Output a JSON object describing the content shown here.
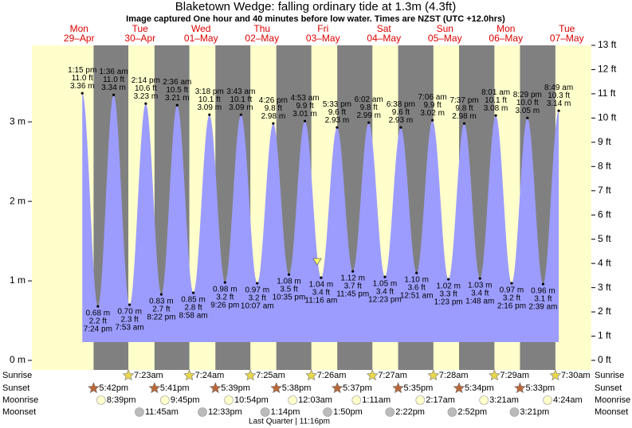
{
  "chart_data": {
    "type": "tide",
    "title": "Blaketown Wedge: falling  ordinary tide at 1.3m (4.3ft)",
    "subtitle": "Image captured One hour and 40 minutes before low water. Times are NZST (UTC +12.0hrs)",
    "ylim": [
      0,
      3.9624
    ],
    "yticks": [
      {
        "value": 0,
        "label": "0 m"
      },
      {
        "value": 1,
        "label": "1 m"
      },
      {
        "value": 2,
        "label": "2 m"
      },
      {
        "value": 3,
        "label": "3 m"
      }
    ],
    "y2lim": [
      0,
      13
    ],
    "y2ticks": [
      {
        "value": 0,
        "label": "0 ft"
      },
      {
        "value": 1,
        "label": "1 ft"
      },
      {
        "value": 2,
        "label": "2 ft"
      },
      {
        "value": 3,
        "label": "3 ft"
      },
      {
        "value": 4,
        "label": "4 ft"
      },
      {
        "value": 5,
        "label": "5 ft"
      },
      {
        "value": 6,
        "label": "6 ft"
      },
      {
        "value": 7,
        "label": "7 ft"
      },
      {
        "value": 8,
        "label": "8 ft"
      },
      {
        "value": 9,
        "label": "9 ft"
      },
      {
        "value": 10,
        "label": "10 ft"
      },
      {
        "value": 11,
        "label": "11 ft"
      },
      {
        "value": 12,
        "label": "12 ft"
      },
      {
        "value": 13,
        "label": "13 ft"
      }
    ],
    "row_labels": {
      "sunrise": "Sunrise",
      "sunset": "Sunset",
      "moonrise": "Moonrise",
      "moonset": "Moonset"
    },
    "moon_phase": "Last Quarter | 11:16pm",
    "colors": {
      "day": "#ffffcc",
      "night": "#808080",
      "tide": "#9c9cff",
      "day_label": "#dd0000",
      "sunrise": "#e8d84a",
      "sunset": "#b8683a",
      "moonrise": "#ffffcc",
      "moonset": "#bbbbbb"
    },
    "days": [
      {
        "dow": "Mon",
        "date": "29–Apr",
        "sunset": "5:42pm",
        "moonrise": "8:39pm",
        "tides": [
          {
            "time": "1:15 pm",
            "ft_label": "11.0 ft",
            "m": 3.36,
            "m_label": "3.36 m"
          },
          {
            "time": "7:24 pm",
            "ft_label": "2.2 ft",
            "m": 0.68,
            "m_label": "0.68 m"
          }
        ]
      },
      {
        "dow": "Tue",
        "date": "30–Apr",
        "sunrise": "7:23am",
        "sunset": "5:41pm",
        "moonrise": "9:45pm",
        "moonset": "11:45am",
        "tides": [
          {
            "time": "1:36 am",
            "ft_label": "11.0 ft",
            "m": 3.34,
            "m_label": "3.34 m"
          },
          {
            "time": "7:53 am",
            "ft_label": "2.3 ft",
            "m": 0.7,
            "m_label": "0.70 m"
          },
          {
            "time": "2:14 pm",
            "ft_label": "10.6 ft",
            "m": 3.23,
            "m_label": "3.23 m"
          },
          {
            "time": "8:22 pm",
            "ft_label": "2.7 ft",
            "m": 0.83,
            "m_label": "0.83 m"
          }
        ]
      },
      {
        "dow": "Wed",
        "date": "01–May",
        "sunrise": "7:24am",
        "sunset": "5:39pm",
        "moonrise": "10:54pm",
        "moonset": "12:33pm",
        "tides": [
          {
            "time": "2:36 am",
            "ft_label": "10.5 ft",
            "m": 3.21,
            "m_label": "3.21 m"
          },
          {
            "time": "8:58 am",
            "ft_label": "2.8 ft",
            "m": 0.85,
            "m_label": "0.85 m"
          },
          {
            "time": "3:18 pm",
            "ft_label": "10.1 ft",
            "m": 3.09,
            "m_label": "3.09 m"
          },
          {
            "time": "9:26 pm",
            "ft_label": "3.2 ft",
            "m": 0.98,
            "m_label": "0.98 m"
          }
        ]
      },
      {
        "dow": "Thu",
        "date": "02–May",
        "sunrise": "7:25am",
        "sunset": "5:38pm",
        "moonset": "1:14pm",
        "tides": [
          {
            "time": "3:43 am",
            "ft_label": "10.1 ft",
            "m": 3.09,
            "m_label": "3.09 m"
          },
          {
            "time": "10:07 am",
            "ft_label": "3.2 ft",
            "m": 0.97,
            "m_label": "0.97 m"
          },
          {
            "time": "4:26 pm",
            "ft_label": "9.8 ft",
            "m": 2.98,
            "m_label": "2.98 m"
          },
          {
            "time": "10:35 pm",
            "ft_label": "3.5 ft",
            "m": 1.08,
            "m_label": "1.08 m"
          }
        ]
      },
      {
        "dow": "Fri",
        "date": "03–May",
        "sunrise": "7:26am",
        "sunset": "5:37pm",
        "moonrise": "12:03am",
        "moonset": "1:50pm",
        "tides": [
          {
            "time": "4:53 am",
            "ft_label": "9.9 ft",
            "m": 3.01,
            "m_label": "3.01 m"
          },
          {
            "time": "11:16 am",
            "ft_label": "3.4 ft",
            "m": 1.04,
            "m_label": "1.04 m"
          },
          {
            "time": "5:33 pm",
            "ft_label": "9.6 ft",
            "m": 2.93,
            "m_label": "2.93 m"
          },
          {
            "time": "11:45 pm",
            "ft_label": "3.7 ft",
            "m": 1.12,
            "m_label": "1.12 m"
          }
        ]
      },
      {
        "dow": "Sat",
        "date": "04–May",
        "sunrise": "7:27am",
        "sunset": "5:35pm",
        "moonrise": "1:11am",
        "moonset": "2:22pm",
        "tides": [
          {
            "time": "6:02 am",
            "ft_label": "9.8 ft",
            "m": 2.99,
            "m_label": "2.99 m"
          },
          {
            "time": "12:23 pm",
            "ft_label": "3.4 ft",
            "m": 1.05,
            "m_label": "1.05 m"
          },
          {
            "time": "6:38 pm",
            "ft_label": "9.6 ft",
            "m": 2.93,
            "m_label": "2.93 m"
          }
        ]
      },
      {
        "dow": "Sun",
        "date": "05–May",
        "sunrise": "7:28am",
        "sunset": "5:34pm",
        "moonrise": "2:17am",
        "moonset": "2:52pm",
        "tides": [
          {
            "time": "12:51 am",
            "ft_label": "3.6 ft",
            "m": 1.1,
            "m_label": "1.10 m"
          },
          {
            "time": "7:06 am",
            "ft_label": "9.9 ft",
            "m": 3.02,
            "m_label": "3.02 m"
          },
          {
            "time": "1:23 pm",
            "ft_label": "3.3 ft",
            "m": 1.02,
            "m_label": "1.02 m"
          },
          {
            "time": "7:37 pm",
            "ft_label": "9.8 ft",
            "m": 2.98,
            "m_label": "2.98 m"
          }
        ]
      },
      {
        "dow": "Mon",
        "date": "06–May",
        "sunrise": "7:29am",
        "sunset": "5:33pm",
        "moonrise": "3:21am",
        "moonset": "3:21pm",
        "tides": [
          {
            "time": "1:48 am",
            "ft_label": "3.4 ft",
            "m": 1.03,
            "m_label": "1.03 m"
          },
          {
            "time": "8:01 am",
            "ft_label": "10.1 ft",
            "m": 3.08,
            "m_label": "3.08 m"
          },
          {
            "time": "2:16 pm",
            "ft_label": "3.2 ft",
            "m": 0.97,
            "m_label": "0.97 m"
          },
          {
            "time": "8:29 pm",
            "ft_label": "10.0 ft",
            "m": 3.05,
            "m_label": "3.05 m"
          }
        ]
      },
      {
        "dow": "Tue",
        "date": "07–May",
        "sunrise": "7:30am",
        "moonrise": "4:24am",
        "tides": [
          {
            "time": "2:39 am",
            "ft_label": "3.1 ft",
            "m": 0.96,
            "m_label": "0.96 m"
          },
          {
            "time": "8:49 am",
            "ft_label": "10.3 ft",
            "m": 3.14,
            "m_label": "3.14 m"
          }
        ]
      }
    ]
  }
}
